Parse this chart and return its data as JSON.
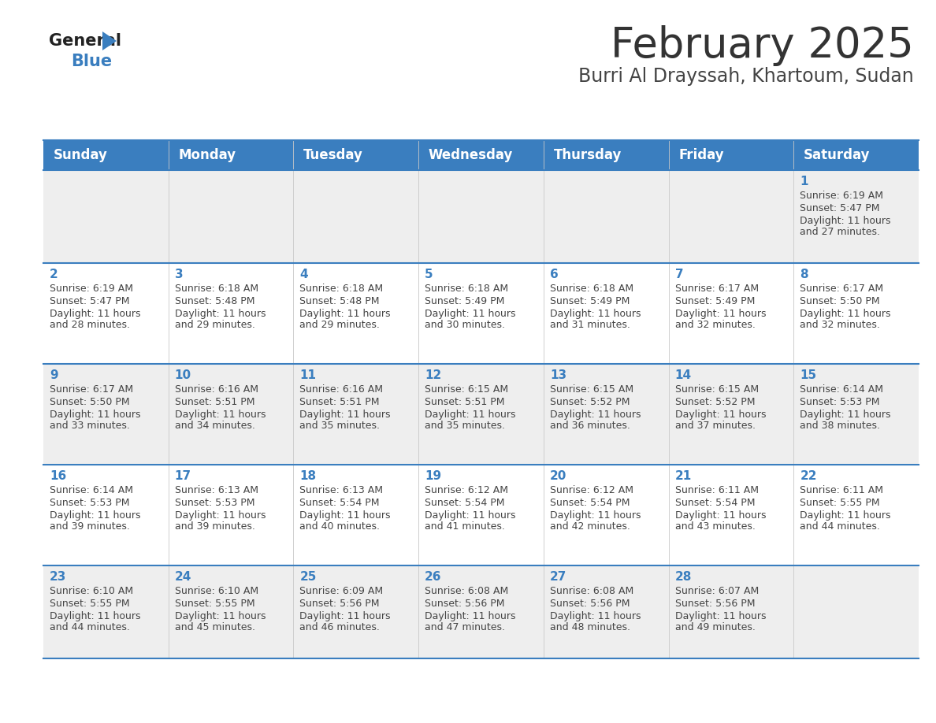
{
  "title": "February 2025",
  "subtitle": "Burri Al Drayssah, Khartoum, Sudan",
  "header_bg": "#3a7ebf",
  "header_text": "#ffffff",
  "row_bg_odd": "#eeeeee",
  "row_bg_even": "#ffffff",
  "border_color": "#3a7ebf",
  "day_number_color": "#3a7ebf",
  "text_color": "#444444",
  "days_of_week": [
    "Sunday",
    "Monday",
    "Tuesday",
    "Wednesday",
    "Thursday",
    "Friday",
    "Saturday"
  ],
  "weeks": [
    [
      {
        "day": null,
        "sunrise": null,
        "sunset": null,
        "daylight": null
      },
      {
        "day": null,
        "sunrise": null,
        "sunset": null,
        "daylight": null
      },
      {
        "day": null,
        "sunrise": null,
        "sunset": null,
        "daylight": null
      },
      {
        "day": null,
        "sunrise": null,
        "sunset": null,
        "daylight": null
      },
      {
        "day": null,
        "sunrise": null,
        "sunset": null,
        "daylight": null
      },
      {
        "day": null,
        "sunrise": null,
        "sunset": null,
        "daylight": null
      },
      {
        "day": 1,
        "sunrise": "6:19 AM",
        "sunset": "5:47 PM",
        "daylight": "11 hours and 27 minutes."
      }
    ],
    [
      {
        "day": 2,
        "sunrise": "6:19 AM",
        "sunset": "5:47 PM",
        "daylight": "11 hours and 28 minutes."
      },
      {
        "day": 3,
        "sunrise": "6:18 AM",
        "sunset": "5:48 PM",
        "daylight": "11 hours and 29 minutes."
      },
      {
        "day": 4,
        "sunrise": "6:18 AM",
        "sunset": "5:48 PM",
        "daylight": "11 hours and 29 minutes."
      },
      {
        "day": 5,
        "sunrise": "6:18 AM",
        "sunset": "5:49 PM",
        "daylight": "11 hours and 30 minutes."
      },
      {
        "day": 6,
        "sunrise": "6:18 AM",
        "sunset": "5:49 PM",
        "daylight": "11 hours and 31 minutes."
      },
      {
        "day": 7,
        "sunrise": "6:17 AM",
        "sunset": "5:49 PM",
        "daylight": "11 hours and 32 minutes."
      },
      {
        "day": 8,
        "sunrise": "6:17 AM",
        "sunset": "5:50 PM",
        "daylight": "11 hours and 32 minutes."
      }
    ],
    [
      {
        "day": 9,
        "sunrise": "6:17 AM",
        "sunset": "5:50 PM",
        "daylight": "11 hours and 33 minutes."
      },
      {
        "day": 10,
        "sunrise": "6:16 AM",
        "sunset": "5:51 PM",
        "daylight": "11 hours and 34 minutes."
      },
      {
        "day": 11,
        "sunrise": "6:16 AM",
        "sunset": "5:51 PM",
        "daylight": "11 hours and 35 minutes."
      },
      {
        "day": 12,
        "sunrise": "6:15 AM",
        "sunset": "5:51 PM",
        "daylight": "11 hours and 35 minutes."
      },
      {
        "day": 13,
        "sunrise": "6:15 AM",
        "sunset": "5:52 PM",
        "daylight": "11 hours and 36 minutes."
      },
      {
        "day": 14,
        "sunrise": "6:15 AM",
        "sunset": "5:52 PM",
        "daylight": "11 hours and 37 minutes."
      },
      {
        "day": 15,
        "sunrise": "6:14 AM",
        "sunset": "5:53 PM",
        "daylight": "11 hours and 38 minutes."
      }
    ],
    [
      {
        "day": 16,
        "sunrise": "6:14 AM",
        "sunset": "5:53 PM",
        "daylight": "11 hours and 39 minutes."
      },
      {
        "day": 17,
        "sunrise": "6:13 AM",
        "sunset": "5:53 PM",
        "daylight": "11 hours and 39 minutes."
      },
      {
        "day": 18,
        "sunrise": "6:13 AM",
        "sunset": "5:54 PM",
        "daylight": "11 hours and 40 minutes."
      },
      {
        "day": 19,
        "sunrise": "6:12 AM",
        "sunset": "5:54 PM",
        "daylight": "11 hours and 41 minutes."
      },
      {
        "day": 20,
        "sunrise": "6:12 AM",
        "sunset": "5:54 PM",
        "daylight": "11 hours and 42 minutes."
      },
      {
        "day": 21,
        "sunrise": "6:11 AM",
        "sunset": "5:54 PM",
        "daylight": "11 hours and 43 minutes."
      },
      {
        "day": 22,
        "sunrise": "6:11 AM",
        "sunset": "5:55 PM",
        "daylight": "11 hours and 44 minutes."
      }
    ],
    [
      {
        "day": 23,
        "sunrise": "6:10 AM",
        "sunset": "5:55 PM",
        "daylight": "11 hours and 44 minutes."
      },
      {
        "day": 24,
        "sunrise": "6:10 AM",
        "sunset": "5:55 PM",
        "daylight": "11 hours and 45 minutes."
      },
      {
        "day": 25,
        "sunrise": "6:09 AM",
        "sunset": "5:56 PM",
        "daylight": "11 hours and 46 minutes."
      },
      {
        "day": 26,
        "sunrise": "6:08 AM",
        "sunset": "5:56 PM",
        "daylight": "11 hours and 47 minutes."
      },
      {
        "day": 27,
        "sunrise": "6:08 AM",
        "sunset": "5:56 PM",
        "daylight": "11 hours and 48 minutes."
      },
      {
        "day": 28,
        "sunrise": "6:07 AM",
        "sunset": "5:56 PM",
        "daylight": "11 hours and 49 minutes."
      },
      {
        "day": null,
        "sunrise": null,
        "sunset": null,
        "daylight": null
      }
    ]
  ],
  "logo_general_color": "#222222",
  "logo_blue_color": "#3a7ebf",
  "title_fontsize": 38,
  "subtitle_fontsize": 17,
  "header_fontsize": 12,
  "day_num_fontsize": 11,
  "cell_text_fontsize": 9,
  "fig_width": 11.88,
  "fig_height": 9.18,
  "fig_dpi": 100
}
